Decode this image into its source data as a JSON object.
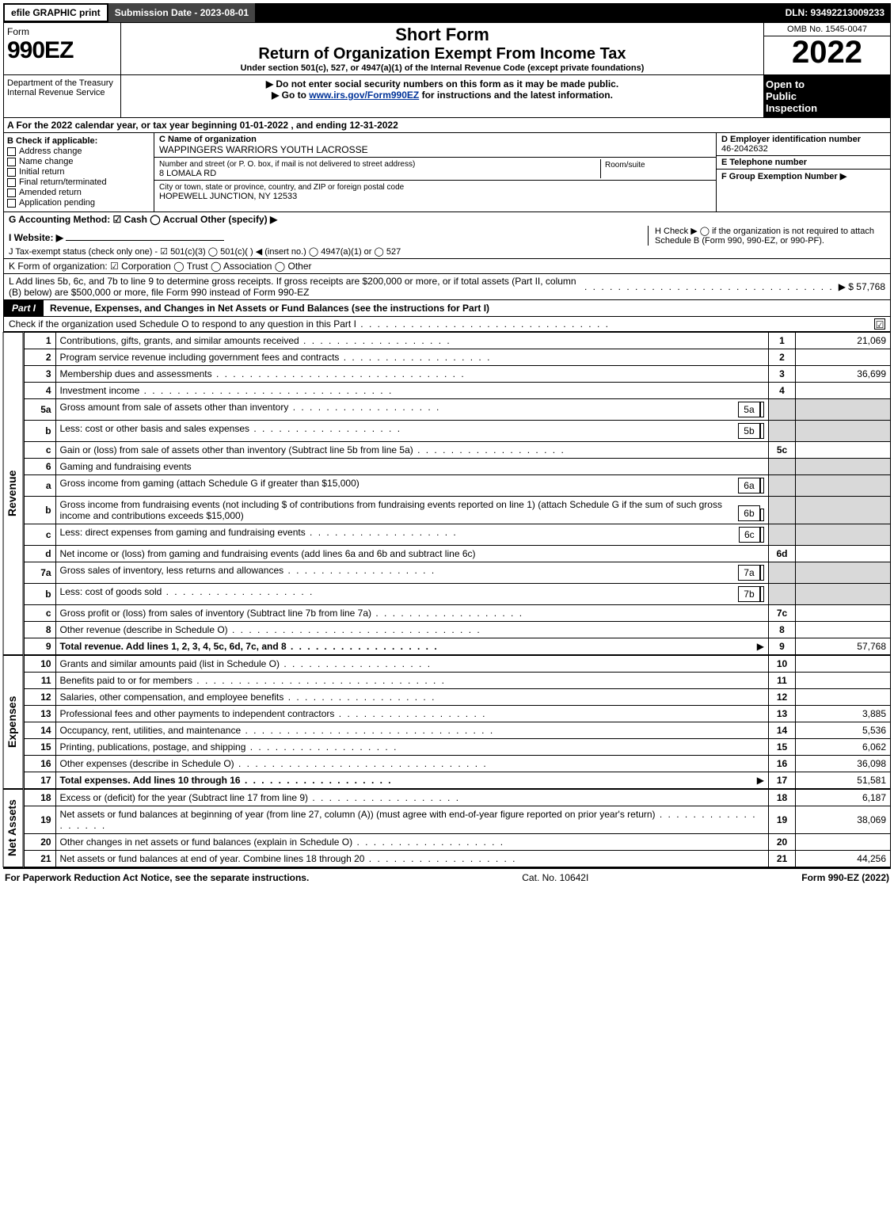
{
  "topbar": {
    "efile": "efile GRAPHIC print",
    "subdate": "Submission Date - 2023-08-01",
    "dln": "DLN: 93492213009233"
  },
  "header": {
    "formword": "Form",
    "formnum": "990EZ",
    "dept": "Department of the Treasury\nInternal Revenue Service",
    "shortform": "Short Form",
    "title": "Return of Organization Exempt From Income Tax",
    "undersection": "Under section 501(c), 527, or 4947(a)(1) of the Internal Revenue Code (except private foundations)",
    "nossn": "▶ Do not enter social security numbers on this form as it may be made public.",
    "goto_pre": "▶ Go to ",
    "goto_link": "www.irs.gov/Form990EZ",
    "goto_post": " for instructions and the latest information.",
    "omb": "OMB No. 1545-0047",
    "year": "2022",
    "open1": "Open to",
    "open2": "Public",
    "open3": "Inspection"
  },
  "secA": "A  For the 2022 calendar year, or tax year beginning 01-01-2022  , and ending 12-31-2022",
  "B": {
    "title": "B  Check if applicable:",
    "opts": [
      "Address change",
      "Name change",
      "Initial return",
      "Final return/terminated",
      "Amended return",
      "Application pending"
    ]
  },
  "C": {
    "label": "C Name of organization",
    "name": "WAPPINGERS WARRIORS YOUTH LACROSSE",
    "streetlbl": "Number and street (or P. O. box, if mail is not delivered to street address)",
    "street": "8 LOMALA RD",
    "room": "Room/suite",
    "citylbl": "City or town, state or province, country, and ZIP or foreign postal code",
    "city": "HOPEWELL JUNCTION, NY  12533"
  },
  "D": {
    "label": "D Employer identification number",
    "ein": "46-2042632",
    "E": "E Telephone number",
    "F": "F Group Exemption Number   ▶"
  },
  "G": "G Accounting Method:   ☑ Cash  ◯ Accrual   Other (specify) ▶",
  "H": "H   Check ▶  ◯  if the organization is not required to attach Schedule B (Form 990, 990-EZ, or 990-PF).",
  "I": "I Website: ▶",
  "J": "J Tax-exempt status (check only one) -  ☑ 501(c)(3) ◯ 501(c)(  ) ◀ (insert no.) ◯ 4947(a)(1) or ◯ 527",
  "K": "K Form of organization:   ☑ Corporation   ◯ Trust   ◯ Association   ◯ Other",
  "L": {
    "text": "L Add lines 5b, 6c, and 7b to line 9 to determine gross receipts. If gross receipts are $200,000 or more, or if total assets (Part II, column (B) below) are $500,000 or more, file Form 990 instead of Form 990-EZ",
    "amount": "▶ $ 57,768"
  },
  "part1": {
    "tag": "Part I",
    "title": "Revenue, Expenses, and Changes in Net Assets or Fund Balances (see the instructions for Part I)",
    "checkline": "Check if the organization used Schedule O to respond to any question in this Part I",
    "checkmark": "☑"
  },
  "sidelabels": {
    "rev": "Revenue",
    "exp": "Expenses",
    "net": "Net Assets"
  },
  "lines": {
    "l1": {
      "n": "1",
      "d": "Contributions, gifts, grants, and similar amounts received",
      "ln": "1",
      "amt": "21,069"
    },
    "l2": {
      "n": "2",
      "d": "Program service revenue including government fees and contracts",
      "ln": "2",
      "amt": ""
    },
    "l3": {
      "n": "3",
      "d": "Membership dues and assessments",
      "ln": "3",
      "amt": "36,699"
    },
    "l4": {
      "n": "4",
      "d": "Investment income",
      "ln": "4",
      "amt": ""
    },
    "l5a": {
      "n": "5a",
      "d": "Gross amount from sale of assets other than inventory",
      "in": "5a"
    },
    "l5b": {
      "n": "b",
      "d": "Less: cost or other basis and sales expenses",
      "in": "5b"
    },
    "l5c": {
      "n": "c",
      "d": "Gain or (loss) from sale of assets other than inventory (Subtract line 5b from line 5a)",
      "ln": "5c",
      "amt": ""
    },
    "l6": {
      "n": "6",
      "d": "Gaming and fundraising events"
    },
    "l6a": {
      "n": "a",
      "d": "Gross income from gaming (attach Schedule G if greater than $15,000)",
      "in": "6a"
    },
    "l6b": {
      "n": "b",
      "d": "Gross income from fundraising events (not including $                    of contributions from fundraising events reported on line 1) (attach Schedule G if the sum of such gross income and contributions exceeds $15,000)",
      "in": "6b"
    },
    "l6c": {
      "n": "c",
      "d": "Less: direct expenses from gaming and fundraising events",
      "in": "6c"
    },
    "l6d": {
      "n": "d",
      "d": "Net income or (loss) from gaming and fundraising events (add lines 6a and 6b and subtract line 6c)",
      "ln": "6d",
      "amt": ""
    },
    "l7a": {
      "n": "7a",
      "d": "Gross sales of inventory, less returns and allowances",
      "in": "7a"
    },
    "l7b": {
      "n": "b",
      "d": "Less: cost of goods sold",
      "in": "7b"
    },
    "l7c": {
      "n": "c",
      "d": "Gross profit or (loss) from sales of inventory (Subtract line 7b from line 7a)",
      "ln": "7c",
      "amt": ""
    },
    "l8": {
      "n": "8",
      "d": "Other revenue (describe in Schedule O)",
      "ln": "8",
      "amt": ""
    },
    "l9": {
      "n": "9",
      "d": "Total revenue. Add lines 1, 2, 3, 4, 5c, 6d, 7c, and 8",
      "ln": "9",
      "amt": "57,768",
      "arrow": "▶",
      "bold": true
    },
    "l10": {
      "n": "10",
      "d": "Grants and similar amounts paid (list in Schedule O)",
      "ln": "10",
      "amt": ""
    },
    "l11": {
      "n": "11",
      "d": "Benefits paid to or for members",
      "ln": "11",
      "amt": ""
    },
    "l12": {
      "n": "12",
      "d": "Salaries, other compensation, and employee benefits",
      "ln": "12",
      "amt": ""
    },
    "l13": {
      "n": "13",
      "d": "Professional fees and other payments to independent contractors",
      "ln": "13",
      "amt": "3,885"
    },
    "l14": {
      "n": "14",
      "d": "Occupancy, rent, utilities, and maintenance",
      "ln": "14",
      "amt": "5,536"
    },
    "l15": {
      "n": "15",
      "d": "Printing, publications, postage, and shipping",
      "ln": "15",
      "amt": "6,062"
    },
    "l16": {
      "n": "16",
      "d": "Other expenses (describe in Schedule O)",
      "ln": "16",
      "amt": "36,098"
    },
    "l17": {
      "n": "17",
      "d": "Total expenses. Add lines 10 through 16",
      "ln": "17",
      "amt": "51,581",
      "arrow": "▶",
      "bold": true
    },
    "l18": {
      "n": "18",
      "d": "Excess or (deficit) for the year (Subtract line 17 from line 9)",
      "ln": "18",
      "amt": "6,187"
    },
    "l19": {
      "n": "19",
      "d": "Net assets or fund balances at beginning of year (from line 27, column (A)) (must agree with end-of-year figure reported on prior year's return)",
      "ln": "19",
      "amt": "38,069"
    },
    "l20": {
      "n": "20",
      "d": "Other changes in net assets or fund balances (explain in Schedule O)",
      "ln": "20",
      "amt": ""
    },
    "l21": {
      "n": "21",
      "d": "Net assets or fund balances at end of year. Combine lines 18 through 20",
      "ln": "21",
      "amt": "44,256"
    }
  },
  "footer": {
    "left": "For Paperwork Reduction Act Notice, see the separate instructions.",
    "mid": "Cat. No. 10642I",
    "right": "Form 990-EZ (2022)"
  },
  "colors": {
    "black": "#000000",
    "grey": "#d9d9d9",
    "linkblue": "#003399"
  }
}
